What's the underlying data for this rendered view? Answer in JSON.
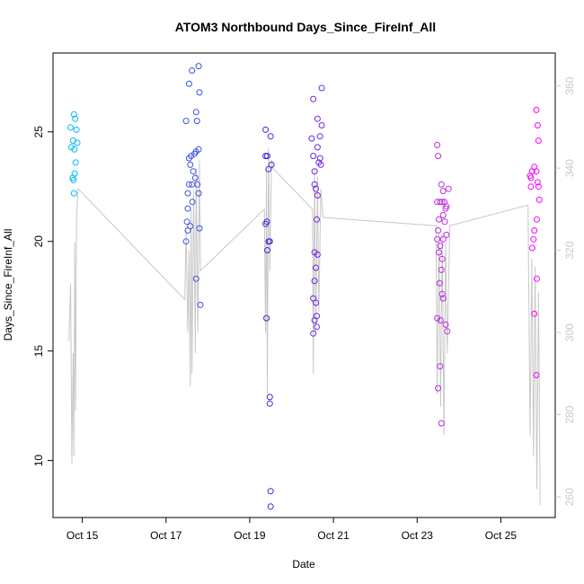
{
  "chart_data": {
    "type": "scatter",
    "title": "ATOM3 Northbound Days_Since_FireInf_All",
    "xlabel": "Date",
    "ylabel": "Days_Since_FireInf_All",
    "x_tick_labels": [
      "Oct 15",
      "Oct 17",
      "Oct 19",
      "Oct 21",
      "Oct 23",
      "Oct 25"
    ],
    "x_tick_days": [
      15,
      17,
      19,
      21,
      23,
      25
    ],
    "xlim_days": [
      14.3,
      26.3
    ],
    "y_ticks": [
      10,
      15,
      20,
      25
    ],
    "ylim": [
      7.4,
      28.6
    ],
    "y2_ticks": [
      260,
      280,
      300,
      320,
      340,
      360
    ],
    "y2lim": [
      255,
      368
    ],
    "points_color_ramp": [
      "#00bfff",
      "#4169e1",
      "#3b24d8",
      "#8a2be2",
      "#c02be2",
      "#ff00ff"
    ],
    "points": [
      {
        "day": 14.72,
        "y": 25.2
      },
      {
        "day": 14.8,
        "y": 25.8
      },
      {
        "day": 14.83,
        "y": 25.6
      },
      {
        "day": 14.86,
        "y": 25.1
      },
      {
        "day": 14.74,
        "y": 24.3
      },
      {
        "day": 14.78,
        "y": 24.6
      },
      {
        "day": 14.81,
        "y": 24.2
      },
      {
        "day": 14.88,
        "y": 24.5
      },
      {
        "day": 14.77,
        "y": 22.9
      },
      {
        "day": 14.79,
        "y": 22.8
      },
      {
        "day": 14.84,
        "y": 23.6
      },
      {
        "day": 14.82,
        "y": 23.1
      },
      {
        "day": 14.8,
        "y": 22.2
      },
      {
        "day": 17.55,
        "y": 27.2
      },
      {
        "day": 17.62,
        "y": 27.8
      },
      {
        "day": 17.78,
        "y": 28.0
      },
      {
        "day": 17.8,
        "y": 26.8
      },
      {
        "day": 17.72,
        "y": 25.9
      },
      {
        "day": 17.48,
        "y": 25.5
      },
      {
        "day": 17.74,
        "y": 25.5
      },
      {
        "day": 17.78,
        "y": 24.2
      },
      {
        "day": 17.68,
        "y": 24.0
      },
      {
        "day": 17.72,
        "y": 24.1
      },
      {
        "day": 17.55,
        "y": 23.8
      },
      {
        "day": 17.6,
        "y": 23.9
      },
      {
        "day": 17.58,
        "y": 23.5
      },
      {
        "day": 17.65,
        "y": 23.2
      },
      {
        "day": 17.7,
        "y": 22.9
      },
      {
        "day": 17.62,
        "y": 22.6
      },
      {
        "day": 17.55,
        "y": 22.6
      },
      {
        "day": 17.75,
        "y": 22.6
      },
      {
        "day": 17.52,
        "y": 22.2
      },
      {
        "day": 17.78,
        "y": 22.2
      },
      {
        "day": 17.63,
        "y": 21.8
      },
      {
        "day": 17.52,
        "y": 21.5
      },
      {
        "day": 17.5,
        "y": 20.9
      },
      {
        "day": 17.58,
        "y": 20.7
      },
      {
        "day": 17.52,
        "y": 20.5
      },
      {
        "day": 17.8,
        "y": 20.6
      },
      {
        "day": 17.48,
        "y": 20.0
      },
      {
        "day": 17.72,
        "y": 18.3
      },
      {
        "day": 17.82,
        "y": 17.1
      },
      {
        "day": 19.38,
        "y": 25.1
      },
      {
        "day": 19.5,
        "y": 24.8
      },
      {
        "day": 19.38,
        "y": 23.9
      },
      {
        "day": 19.42,
        "y": 23.9
      },
      {
        "day": 19.52,
        "y": 23.5
      },
      {
        "day": 19.45,
        "y": 23.3
      },
      {
        "day": 19.38,
        "y": 20.8
      },
      {
        "day": 19.41,
        "y": 20.9
      },
      {
        "day": 19.45,
        "y": 20.0
      },
      {
        "day": 19.48,
        "y": 20.0
      },
      {
        "day": 19.42,
        "y": 19.6
      },
      {
        "day": 19.4,
        "y": 16.5
      },
      {
        "day": 19.48,
        "y": 12.9
      },
      {
        "day": 19.48,
        "y": 12.6
      },
      {
        "day": 19.5,
        "y": 8.6
      },
      {
        "day": 19.5,
        "y": 7.9
      },
      {
        "day": 20.52,
        "y": 26.5
      },
      {
        "day": 20.72,
        "y": 27.0
      },
      {
        "day": 20.62,
        "y": 25.6
      },
      {
        "day": 20.72,
        "y": 25.3
      },
      {
        "day": 20.68,
        "y": 24.8
      },
      {
        "day": 20.48,
        "y": 24.7
      },
      {
        "day": 20.62,
        "y": 24.3
      },
      {
        "day": 20.52,
        "y": 23.9
      },
      {
        "day": 20.68,
        "y": 23.8
      },
      {
        "day": 20.65,
        "y": 23.6
      },
      {
        "day": 20.7,
        "y": 23.5
      },
      {
        "day": 20.55,
        "y": 23.2
      },
      {
        "day": 20.55,
        "y": 22.6
      },
      {
        "day": 20.58,
        "y": 22.4
      },
      {
        "day": 20.62,
        "y": 22.1
      },
      {
        "day": 20.6,
        "y": 21.0
      },
      {
        "day": 20.55,
        "y": 19.5
      },
      {
        "day": 20.62,
        "y": 19.4
      },
      {
        "day": 20.58,
        "y": 18.8
      },
      {
        "day": 20.55,
        "y": 18.2
      },
      {
        "day": 20.52,
        "y": 17.4
      },
      {
        "day": 20.58,
        "y": 17.2
      },
      {
        "day": 20.6,
        "y": 16.6
      },
      {
        "day": 20.55,
        "y": 16.4
      },
      {
        "day": 20.6,
        "y": 16.1
      },
      {
        "day": 20.52,
        "y": 15.8
      },
      {
        "day": 23.48,
        "y": 24.4
      },
      {
        "day": 23.5,
        "y": 23.9
      },
      {
        "day": 23.58,
        "y": 22.6
      },
      {
        "day": 23.62,
        "y": 22.3
      },
      {
        "day": 23.75,
        "y": 22.4
      },
      {
        "day": 23.48,
        "y": 21.8
      },
      {
        "day": 23.55,
        "y": 21.8
      },
      {
        "day": 23.6,
        "y": 21.8
      },
      {
        "day": 23.65,
        "y": 21.8
      },
      {
        "day": 23.68,
        "y": 21.5
      },
      {
        "day": 23.7,
        "y": 21.6
      },
      {
        "day": 23.62,
        "y": 21.2
      },
      {
        "day": 23.52,
        "y": 21.0
      },
      {
        "day": 23.66,
        "y": 20.9
      },
      {
        "day": 23.5,
        "y": 20.5
      },
      {
        "day": 23.7,
        "y": 20.3
      },
      {
        "day": 23.48,
        "y": 20.1
      },
      {
        "day": 23.62,
        "y": 20.1
      },
      {
        "day": 23.55,
        "y": 19.8
      },
      {
        "day": 23.52,
        "y": 19.5
      },
      {
        "day": 23.6,
        "y": 19.2
      },
      {
        "day": 23.58,
        "y": 18.7
      },
      {
        "day": 23.54,
        "y": 18.1
      },
      {
        "day": 23.6,
        "y": 17.6
      },
      {
        "day": 23.62,
        "y": 17.4
      },
      {
        "day": 23.48,
        "y": 16.5
      },
      {
        "day": 23.56,
        "y": 16.4
      },
      {
        "day": 23.68,
        "y": 16.2
      },
      {
        "day": 23.72,
        "y": 15.9
      },
      {
        "day": 23.55,
        "y": 14.3
      },
      {
        "day": 23.5,
        "y": 13.3
      },
      {
        "day": 23.58,
        "y": 11.7
      },
      {
        "day": 25.85,
        "y": 26.0
      },
      {
        "day": 25.88,
        "y": 25.3
      },
      {
        "day": 25.9,
        "y": 24.6
      },
      {
        "day": 25.75,
        "y": 23.2
      },
      {
        "day": 25.8,
        "y": 23.4
      },
      {
        "day": 25.85,
        "y": 23.2
      },
      {
        "day": 25.7,
        "y": 23.0
      },
      {
        "day": 25.72,
        "y": 22.9
      },
      {
        "day": 25.88,
        "y": 22.7
      },
      {
        "day": 25.72,
        "y": 22.5
      },
      {
        "day": 25.9,
        "y": 22.5
      },
      {
        "day": 25.92,
        "y": 21.9
      },
      {
        "day": 25.86,
        "y": 21.0
      },
      {
        "day": 25.8,
        "y": 20.5
      },
      {
        "day": 25.78,
        "y": 20.1
      },
      {
        "day": 25.75,
        "y": 19.7
      },
      {
        "day": 25.86,
        "y": 18.3
      },
      {
        "day": 25.8,
        "y": 16.7
      },
      {
        "day": 25.85,
        "y": 13.9
      }
    ],
    "line_color": "#c8c8c8",
    "line_secondary": [
      {
        "day": 14.68,
        "y2": 298
      },
      {
        "day": 14.72,
        "y2": 312
      },
      {
        "day": 14.75,
        "y2": 268
      },
      {
        "day": 14.78,
        "y2": 295
      },
      {
        "day": 14.8,
        "y2": 270
      },
      {
        "day": 14.82,
        "y2": 322
      },
      {
        "day": 14.84,
        "y2": 281
      },
      {
        "day": 14.86,
        "y2": 327
      },
      {
        "day": 14.9,
        "y2": 335
      },
      {
        "day": 17.45,
        "y2": 308
      },
      {
        "day": 17.48,
        "y2": 325
      },
      {
        "day": 17.52,
        "y2": 300
      },
      {
        "day": 17.55,
        "y2": 320
      },
      {
        "day": 17.58,
        "y2": 287
      },
      {
        "day": 17.6,
        "y2": 330
      },
      {
        "day": 17.62,
        "y2": 290
      },
      {
        "day": 17.66,
        "y2": 335
      },
      {
        "day": 17.7,
        "y2": 295
      },
      {
        "day": 17.72,
        "y2": 340
      },
      {
        "day": 17.76,
        "y2": 300
      },
      {
        "day": 17.8,
        "y2": 342
      },
      {
        "day": 17.82,
        "y2": 315
      },
      {
        "day": 19.35,
        "y2": 330
      },
      {
        "day": 19.38,
        "y2": 300
      },
      {
        "day": 19.4,
        "y2": 340
      },
      {
        "day": 19.42,
        "y2": 285
      },
      {
        "day": 19.45,
        "y2": 345
      },
      {
        "day": 19.48,
        "y2": 315
      },
      {
        "day": 19.52,
        "y2": 342
      },
      {
        "day": 19.55,
        "y2": 340
      },
      {
        "day": 20.5,
        "y2": 330
      },
      {
        "day": 20.52,
        "y2": 290
      },
      {
        "day": 20.55,
        "y2": 340
      },
      {
        "day": 20.58,
        "y2": 300
      },
      {
        "day": 20.62,
        "y2": 338
      },
      {
        "day": 20.65,
        "y2": 305
      },
      {
        "day": 20.7,
        "y2": 335
      },
      {
        "day": 20.75,
        "y2": 328
      },
      {
        "day": 23.45,
        "y2": 326
      },
      {
        "day": 23.48,
        "y2": 285
      },
      {
        "day": 23.52,
        "y2": 324
      },
      {
        "day": 23.56,
        "y2": 282
      },
      {
        "day": 23.6,
        "y2": 324
      },
      {
        "day": 23.64,
        "y2": 275
      },
      {
        "day": 23.68,
        "y2": 322
      },
      {
        "day": 23.72,
        "y2": 295
      },
      {
        "day": 23.78,
        "y2": 326
      },
      {
        "day": 25.65,
        "y2": 331
      },
      {
        "day": 25.7,
        "y2": 275
      },
      {
        "day": 25.74,
        "y2": 318
      },
      {
        "day": 25.78,
        "y2": 270
      },
      {
        "day": 25.82,
        "y2": 316
      },
      {
        "day": 25.86,
        "y2": 262
      },
      {
        "day": 25.9,
        "y2": 310
      },
      {
        "day": 25.94,
        "y2": 258
      }
    ],
    "grid": false,
    "legend": "none"
  }
}
